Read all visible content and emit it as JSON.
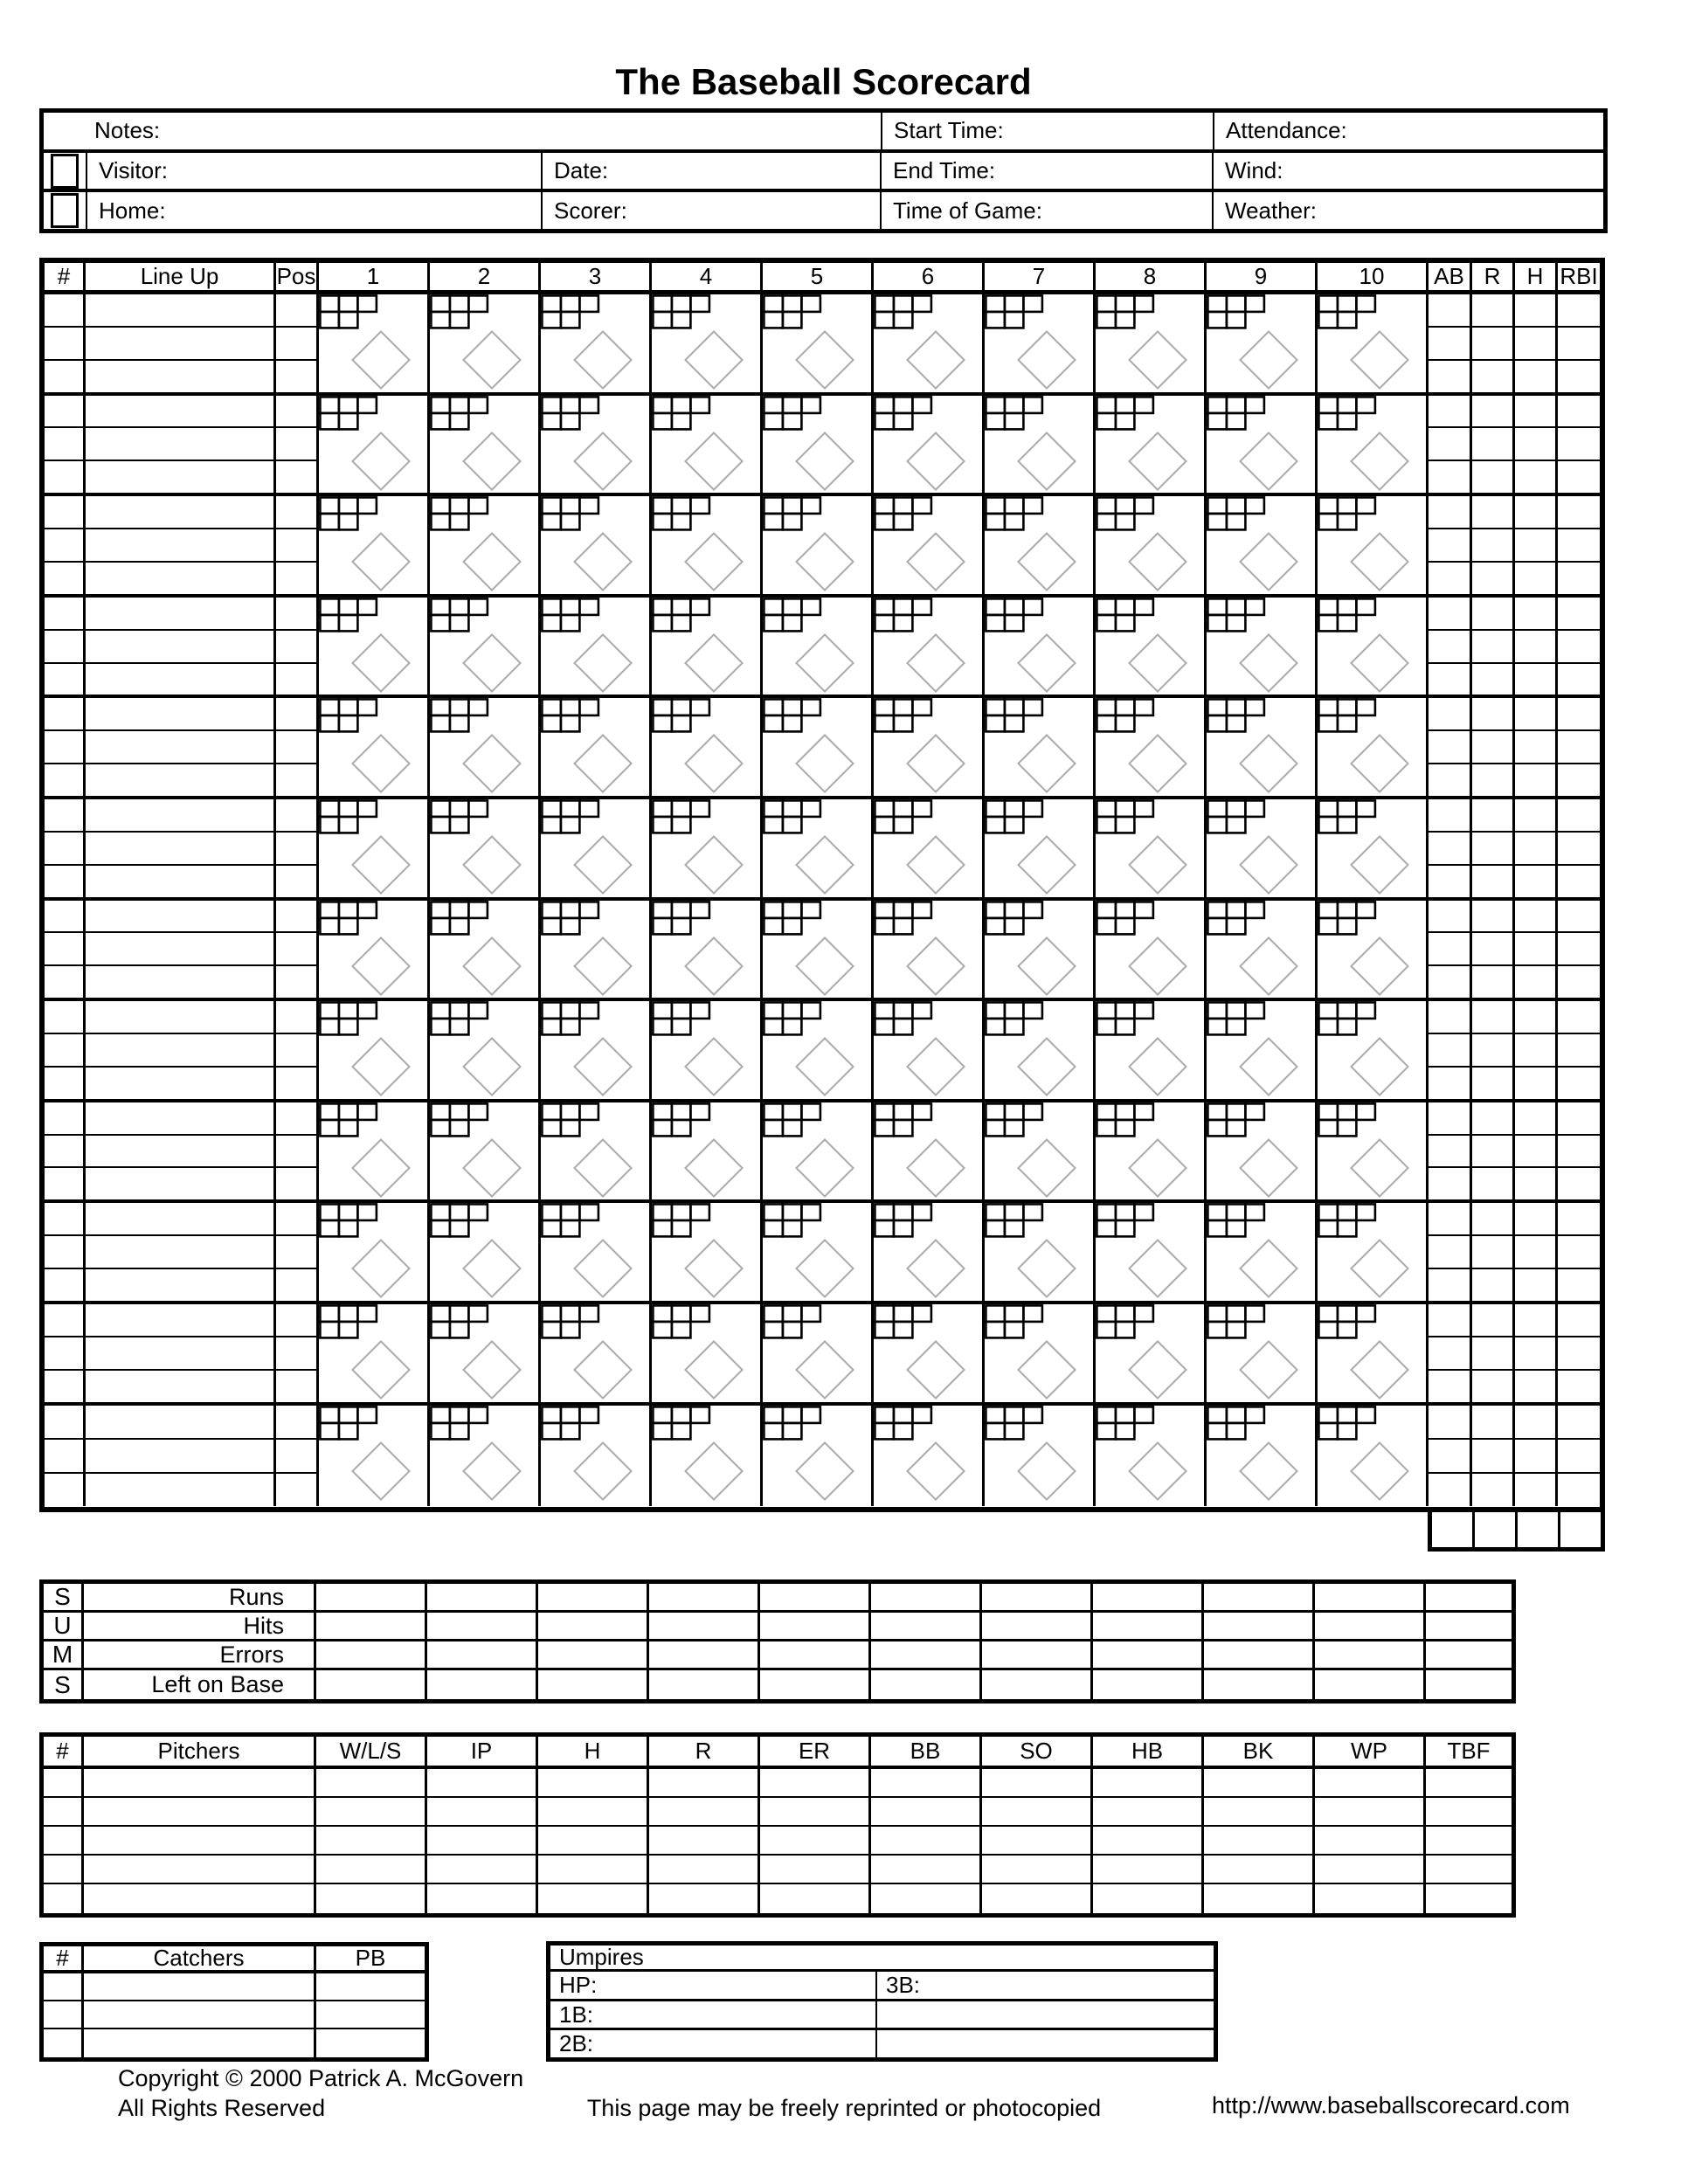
{
  "title": "The Baseball Scorecard",
  "info": {
    "notes_label": "Notes:",
    "start_time_label": "Start Time:",
    "attendance_label": "Attendance:",
    "visitor_label": "Visitor:",
    "date_label": "Date:",
    "end_time_label": "End Time:",
    "wind_label": "Wind:",
    "home_label": "Home:",
    "scorer_label": "Scorer:",
    "time_of_game_label": "Time of Game:",
    "weather_label": "Weather:"
  },
  "lineup_grid": {
    "number_header": "#",
    "lineup_header": "Line Up",
    "pos_header": "Pos",
    "inning_headers": [
      "1",
      "2",
      "3",
      "4",
      "5",
      "6",
      "7",
      "8",
      "9",
      "10"
    ],
    "stat_headers": [
      "AB",
      "R",
      "H",
      "RBI"
    ],
    "player_rows": 12,
    "sub_rows_per_player": 3,
    "pitch_count_boxes": {
      "top_row": 3,
      "bottom_row": 2
    }
  },
  "sums": {
    "side_letters": [
      "S",
      "U",
      "M",
      "S"
    ],
    "row_labels": [
      "Runs",
      "Hits",
      "Errors",
      "Left on Base"
    ],
    "data_columns": 11
  },
  "pitchers": {
    "headers": [
      "#",
      "Pitchers",
      "W/L/S",
      "IP",
      "H",
      "R",
      "ER",
      "BB",
      "SO",
      "HB",
      "BK",
      "WP",
      "TBF"
    ],
    "rows": 5
  },
  "catchers": {
    "headers": [
      "#",
      "Catchers",
      "PB"
    ],
    "rows": 3
  },
  "umpires": {
    "title": "Umpires",
    "hp_label": "HP:",
    "third_base_label": "3B:",
    "first_base_label": "1B:",
    "second_base_label": "2B:"
  },
  "footer": {
    "copyright_line1": "Copyright © 2000 Patrick A. McGovern",
    "copyright_line2": "All Rights Reserved",
    "reprint_notice": "This page may be freely reprinted or photocopied",
    "url": "http://www.baseballscorecard.com"
  },
  "colors": {
    "line": "#000000",
    "diamond": "#ababab",
    "background": "#ffffff"
  }
}
